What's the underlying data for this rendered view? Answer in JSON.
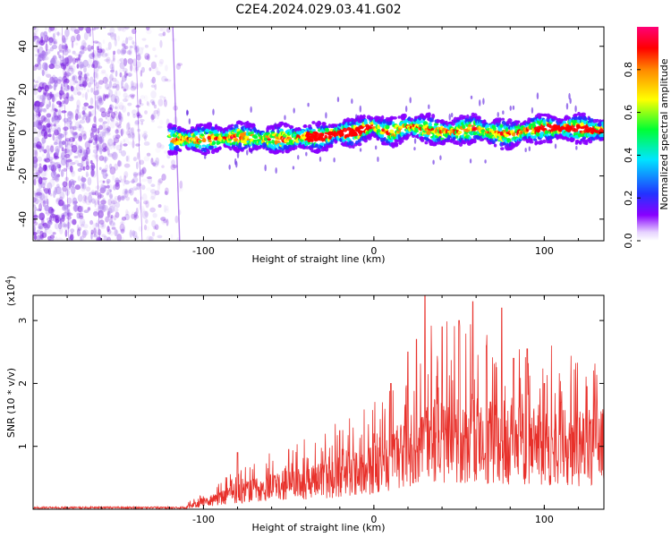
{
  "colors": {
    "axes": "#000000",
    "snr_line": "#e8312b",
    "spectrogram_noise": "#7a1fe0",
    "background": "#ffffff"
  },
  "chart_data": [
    {
      "type": "heatmap",
      "title": "C2E4.2024.029.03.41.G02",
      "xlabel": "Height of straight line (km)",
      "ylabel": "Frequency (Hz)",
      "xlim": [
        -200,
        135
      ],
      "ylim": [
        -50,
        49
      ],
      "xticks": [
        -100,
        0,
        100
      ],
      "xtick_labels": [
        "-100",
        "0",
        "100"
      ],
      "yticks": [
        -40,
        -20,
        0,
        20,
        40
      ],
      "ytick_labels": [
        "-40",
        "-20",
        "0",
        "20",
        "40"
      ],
      "colorbar": {
        "label": "Normalized spectral amplitude",
        "range": [
          0,
          1
        ],
        "ticks": [
          0.0,
          0.2,
          0.4,
          0.6,
          0.8
        ],
        "tick_labels": [
          "0.0",
          "0.2",
          "0.4",
          "0.6",
          "0.8"
        ],
        "colormap": [
          "#ffffff",
          "#8800ff",
          "#2233ff",
          "#00e5ff",
          "#00ff33",
          "#ffff00",
          "#ff8800",
          "#ff0000",
          "#ff0077"
        ]
      },
      "noise_region_x": [
        -200,
        -110
      ],
      "signal_track": {
        "x": [
          -120,
          -100,
          -80,
          -60,
          -40,
          -30,
          -20,
          -10,
          -5,
          0,
          5,
          10,
          20,
          30,
          40,
          50,
          60,
          70,
          80,
          90,
          100,
          110,
          120,
          135
        ],
        "y": [
          -3,
          -3,
          -2,
          -3,
          -2,
          -2,
          0,
          0,
          2,
          3,
          1,
          0,
          3,
          2,
          0,
          1,
          2,
          0,
          -1,
          1,
          2,
          2,
          2,
          1
        ]
      }
    },
    {
      "type": "line",
      "xlabel": "Height of straight line (km)",
      "ylabel": "SNR (10 * v/v)",
      "y_multiplier": "(x10",
      "y_multiplier_exp": "4",
      "y_multiplier_close": ")",
      "xlim": [
        -200,
        135
      ],
      "ylim": [
        0,
        3.4
      ],
      "xticks": [
        -100,
        0,
        100
      ],
      "xtick_labels": [
        "-100",
        "0",
        "100"
      ],
      "yticks": [
        1,
        2,
        3
      ],
      "ytick_labels": [
        "1",
        "2",
        "3"
      ],
      "series": [
        {
          "color": "#e8312b",
          "envelope_x": [
            -200,
            -110,
            -100,
            -80,
            -60,
            -40,
            -20,
            -10,
            0,
            10,
            20,
            30,
            40,
            50,
            60,
            70,
            80,
            90,
            100,
            110,
            120,
            135
          ],
          "envelope_y": [
            0.02,
            0.05,
            0.15,
            0.35,
            0.5,
            0.6,
            0.75,
            0.85,
            0.9,
            1.1,
            1.3,
            1.5,
            1.6,
            1.6,
            1.55,
            1.5,
            1.45,
            1.4,
            1.35,
            1.4,
            1.4,
            1.45
          ],
          "peaks_x": [
            -80,
            -50,
            -20,
            0,
            10,
            20,
            25,
            30,
            40,
            50,
            58,
            66,
            75,
            82,
            90,
            100,
            110,
            125
          ],
          "peaks_y": [
            0.9,
            0.95,
            1.25,
            1.2,
            2.0,
            2.5,
            2.7,
            3.4,
            2.9,
            3.0,
            3.3,
            2.6,
            3.2,
            2.4,
            2.55,
            2.0,
            1.7,
            1.95
          ]
        }
      ]
    }
  ]
}
